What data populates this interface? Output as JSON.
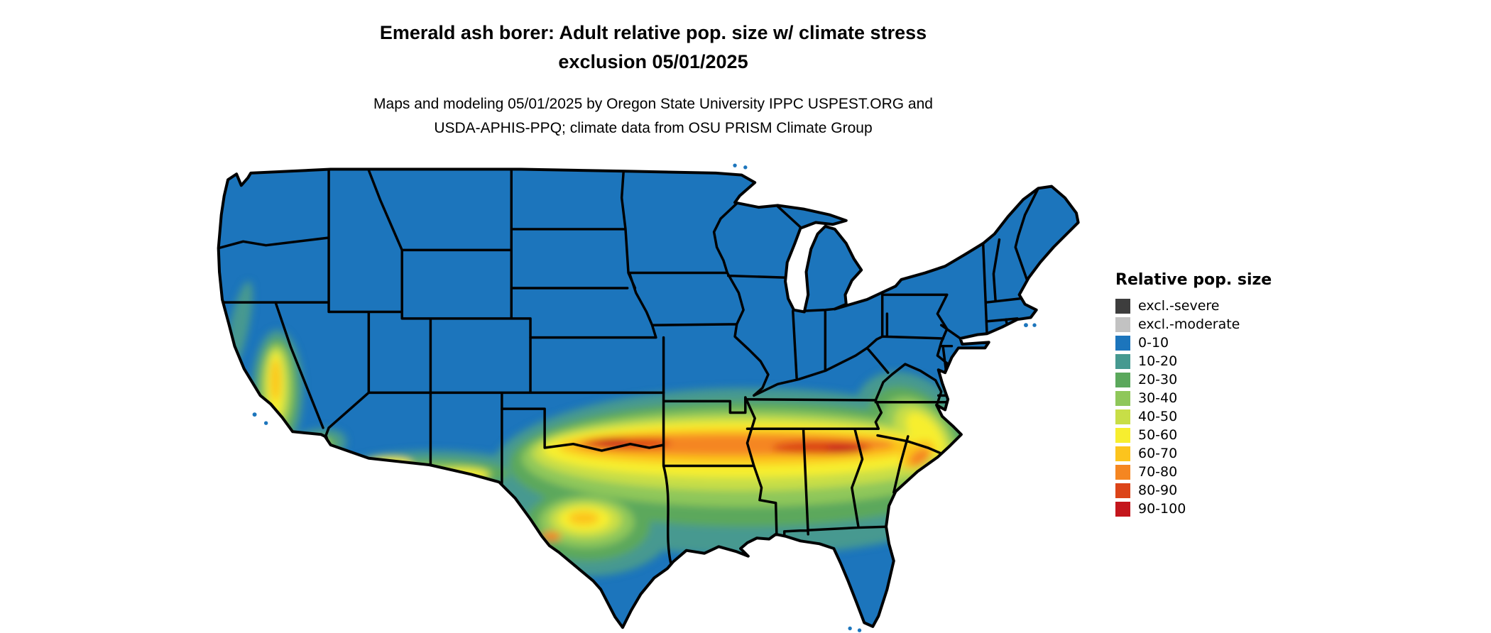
{
  "title": {
    "line1": "Emerald ash borer: Adult relative pop. size w/ climate stress",
    "line2": "exclusion 05/01/2025"
  },
  "subtitle": {
    "line1": "Maps and modeling 05/01/2025 by Oregon State University IPPC USPEST.ORG and",
    "line2": "USDA-APHIS-PPQ; climate data from OSU PRISM Climate Group"
  },
  "legend": {
    "title": "Relative pop. size",
    "items": [
      {
        "label": "excl.-severe",
        "color": "#3d3d3d"
      },
      {
        "label": "excl.-moderate",
        "color": "#c2c2c2"
      },
      {
        "label": "0-10",
        "color": "#1c75bc"
      },
      {
        "label": "10-20",
        "color": "#469990"
      },
      {
        "label": "20-30",
        "color": "#5ba85c"
      },
      {
        "label": "30-40",
        "color": "#8fc75a"
      },
      {
        "label": "40-50",
        "color": "#c8de47"
      },
      {
        "label": "50-60",
        "color": "#f7ee2f"
      },
      {
        "label": "60-70",
        "color": "#fcc41d"
      },
      {
        "label": "70-80",
        "color": "#f58621"
      },
      {
        "label": "80-90",
        "color": "#dc4418"
      },
      {
        "label": "90-100",
        "color": "#c4161c"
      }
    ]
  }
}
